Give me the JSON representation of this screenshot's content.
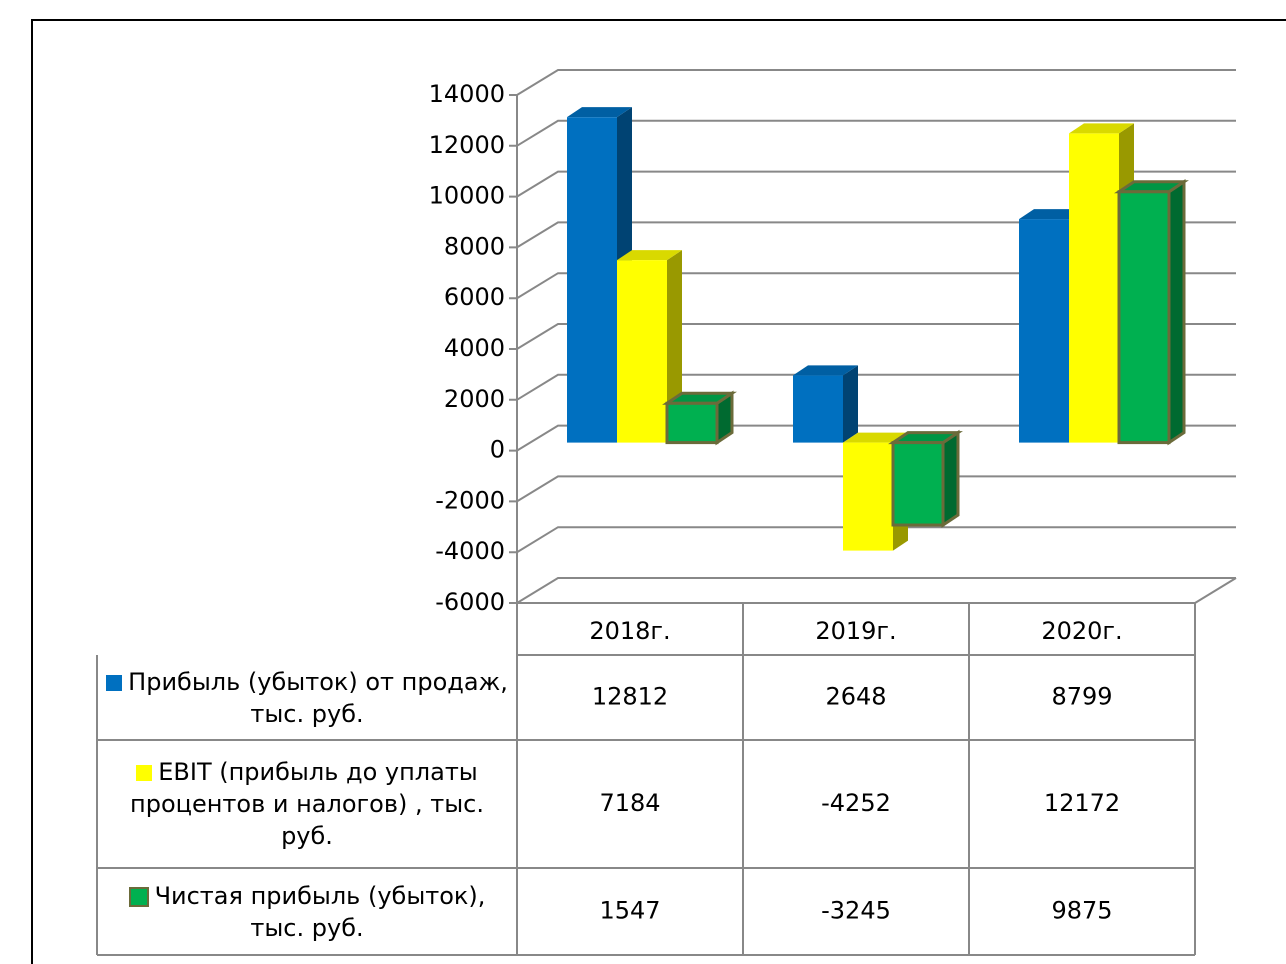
{
  "chart_data": {
    "type": "bar3d",
    "categories": [
      "2018г.",
      "2019г.",
      "2020г."
    ],
    "series": [
      {
        "name": "Прибыль (убыток) от продаж, тыс. руб.",
        "color": "#0070c0",
        "values": [
          12812,
          2648,
          8799
        ]
      },
      {
        "name": "EBIT (прибыль до уплаты процентов и налогов) , тыс. руб.",
        "color": "#ffff00",
        "values": [
          7184,
          -4252,
          12172
        ]
      },
      {
        "name": "Чистая прибыль (убыток), тыс. руб.",
        "color": "#00b050",
        "values": [
          1547,
          -3245,
          9875
        ]
      }
    ],
    "ylim": [
      -6000,
      14000
    ],
    "yticks": [
      -6000,
      -4000,
      -2000,
      0,
      2000,
      4000,
      6000,
      8000,
      10000,
      12000,
      14000
    ],
    "grid": true,
    "data_table": true
  }
}
